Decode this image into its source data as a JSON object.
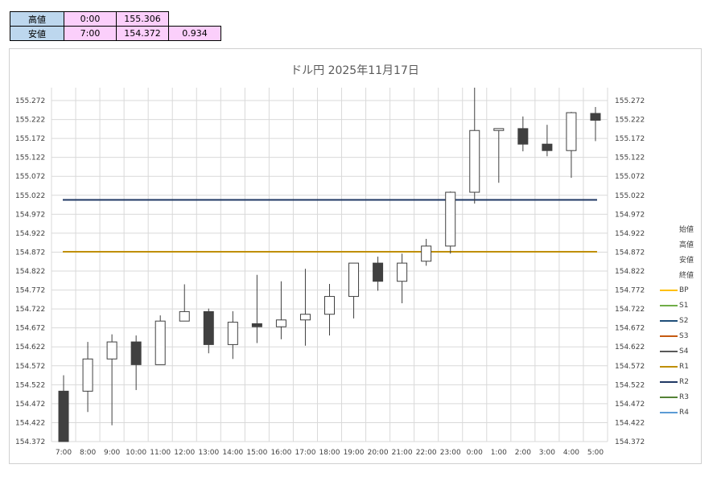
{
  "summary": {
    "high_label": "高値",
    "high_time": "0:00",
    "high_value": "155.306",
    "low_label": "安値",
    "low_time": "7:00",
    "low_value": "154.372",
    "range_value": "0.934"
  },
  "chart_data": {
    "type": "candlestick",
    "title": "ドル円  2025年11月17日",
    "categories": [
      "7:00",
      "8:00",
      "9:00",
      "10:00",
      "11:00",
      "12:00",
      "13:00",
      "14:00",
      "15:00",
      "16:00",
      "17:00",
      "18:00",
      "19:00",
      "20:00",
      "21:00",
      "22:00",
      "23:00",
      "0:00",
      "1:00",
      "2:00",
      "3:00",
      "4:00",
      "5:00"
    ],
    "series": [
      {
        "open": 154.505,
        "high": 154.547,
        "low": 154.372,
        "close": 154.372
      },
      {
        "open": 154.505,
        "high": 154.635,
        "low": 154.45,
        "close": 154.59
      },
      {
        "open": 154.59,
        "high": 154.655,
        "low": 154.415,
        "close": 154.635
      },
      {
        "open": 154.635,
        "high": 154.652,
        "low": 154.508,
        "close": 154.575
      },
      {
        "open": 154.575,
        "high": 154.705,
        "low": 154.575,
        "close": 154.69
      },
      {
        "open": 154.69,
        "high": 154.787,
        "low": 154.69,
        "close": 154.715
      },
      {
        "open": 154.715,
        "high": 154.723,
        "low": 154.605,
        "close": 154.628
      },
      {
        "open": 154.628,
        "high": 154.716,
        "low": 154.59,
        "close": 154.687
      },
      {
        "open": 154.683,
        "high": 154.812,
        "low": 154.632,
        "close": 154.675
      },
      {
        "open": 154.675,
        "high": 154.795,
        "low": 154.642,
        "close": 154.693
      },
      {
        "open": 154.693,
        "high": 154.828,
        "low": 154.625,
        "close": 154.708
      },
      {
        "open": 154.708,
        "high": 154.788,
        "low": 154.652,
        "close": 154.755
      },
      {
        "open": 154.755,
        "high": 154.843,
        "low": 154.697,
        "close": 154.843
      },
      {
        "open": 154.843,
        "high": 154.86,
        "low": 154.77,
        "close": 154.795
      },
      {
        "open": 154.795,
        "high": 154.868,
        "low": 154.737,
        "close": 154.843
      },
      {
        "open": 154.848,
        "high": 154.907,
        "low": 154.836,
        "close": 154.888
      },
      {
        "open": 154.888,
        "high": 155.032,
        "low": 154.868,
        "close": 155.03
      },
      {
        "open": 155.03,
        "high": 155.306,
        "low": 155.0,
        "close": 155.193
      },
      {
        "open": 155.193,
        "high": 155.198,
        "low": 155.055,
        "close": 155.198
      },
      {
        "open": 155.198,
        "high": 155.23,
        "low": 155.138,
        "close": 155.157
      },
      {
        "open": 155.157,
        "high": 155.208,
        "low": 155.125,
        "close": 155.14
      },
      {
        "open": 155.14,
        "high": 155.242,
        "low": 155.068,
        "close": 155.24
      },
      {
        "open": 155.238,
        "high": 155.255,
        "low": 155.165,
        "close": 155.22
      }
    ],
    "levels": [
      {
        "name": "S2",
        "value": 155.01,
        "color": "#1f3864"
      },
      {
        "name": "R1",
        "value": 154.873,
        "color": "#bf8f00"
      }
    ],
    "ylim": [
      154.372,
      155.306
    ],
    "yticks": [
      "155.272",
      "155.222",
      "155.172",
      "155.122",
      "155.072",
      "155.022",
      "154.972",
      "154.922",
      "154.872",
      "154.822",
      "154.772",
      "154.722",
      "154.672",
      "154.622",
      "154.572",
      "154.522",
      "154.472",
      "154.422",
      "154.372"
    ],
    "grid": true,
    "legend_position": "right",
    "legend": [
      {
        "name": "始値",
        "color": ""
      },
      {
        "name": "高値",
        "color": ""
      },
      {
        "name": "安値",
        "color": ""
      },
      {
        "name": "終値",
        "color": ""
      },
      {
        "name": "BP",
        "color": "#ffc000"
      },
      {
        "name": "S1",
        "color": "#70ad47"
      },
      {
        "name": "S2",
        "color": "#1f4e79"
      },
      {
        "name": "S3",
        "color": "#c55a11"
      },
      {
        "name": "S4",
        "color": "#595959"
      },
      {
        "name": "R1",
        "color": "#bf8f00"
      },
      {
        "name": "R2",
        "color": "#203864"
      },
      {
        "name": "R3",
        "color": "#548235"
      },
      {
        "name": "R4",
        "color": "#5b9bd5"
      }
    ]
  }
}
